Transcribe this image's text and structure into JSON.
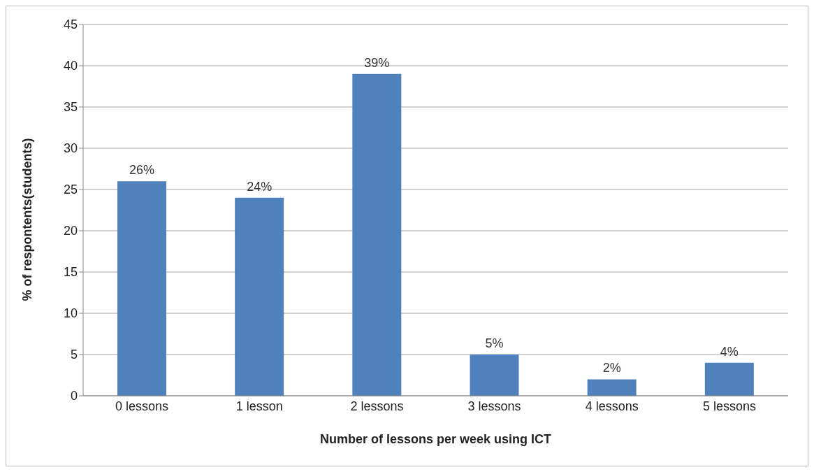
{
  "chart_data": {
    "type": "bar",
    "xlabel": "Number of lessons per week using ICT",
    "ylabel": "% of respontents(students)",
    "categories": [
      "0 lessons",
      "1 lesson",
      "2 lessons",
      "3 lessons",
      "4 lessons",
      "5 lessons"
    ],
    "values": [
      26,
      24,
      39,
      5,
      2,
      4
    ],
    "value_labels": [
      "26%",
      "24%",
      "39%",
      "5%",
      "2%",
      "4%"
    ],
    "color": "#4f81bd",
    "ylim": [
      0,
      45
    ],
    "yticks": [
      0,
      5,
      10,
      15,
      20,
      25,
      30,
      35,
      40,
      45
    ],
    "grid": "y"
  }
}
